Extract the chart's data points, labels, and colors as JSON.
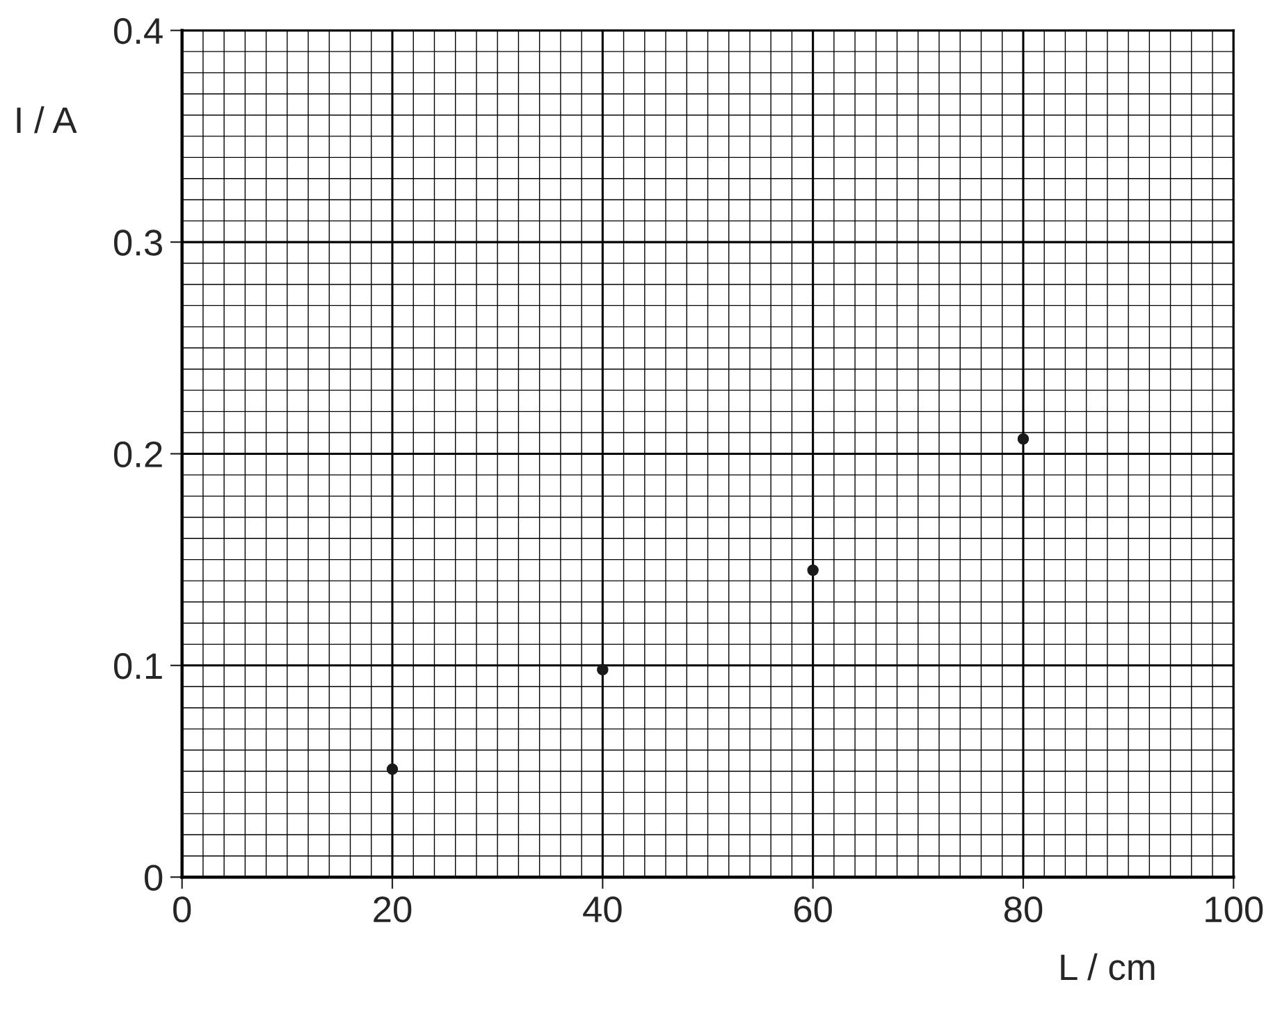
{
  "chart_data": {
    "type": "scatter",
    "xlabel": "L / cm",
    "ylabel": "I / A",
    "x": [
      20,
      40,
      60,
      80
    ],
    "values": [
      0.051,
      0.098,
      0.145,
      0.207
    ],
    "color": "#1a1a1a",
    "marker": "circle",
    "xlim": [
      0,
      100
    ],
    "ylim": [
      0,
      0.4
    ],
    "xticks": [
      0,
      20,
      40,
      60,
      80,
      100
    ],
    "yticks": [
      {
        "value": 0,
        "label": "0"
      },
      0.1,
      0.2,
      0.3,
      0.4
    ],
    "grid": true
  }
}
